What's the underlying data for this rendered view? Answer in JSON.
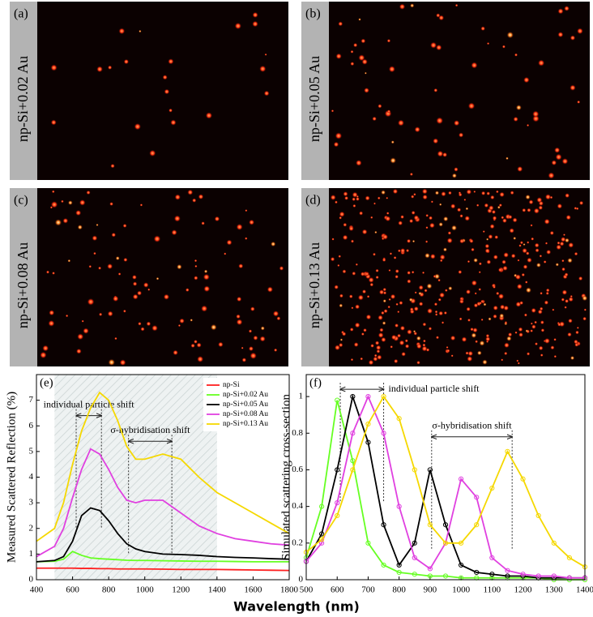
{
  "panels": [
    {
      "label": "(a)",
      "text": "np-Si+0.02 Au"
    },
    {
      "label": "(b)",
      "text": "np-Si+0.05 Au"
    },
    {
      "label": "(c)",
      "text": "np-Si+0.08 Au"
    },
    {
      "label": "(d)",
      "text": "np-Si+0.13 Au"
    }
  ],
  "chart_data": [
    {
      "type": "line",
      "label": "(e)",
      "ylabel": "Measured Scattered Reflection (%)",
      "xlabel": "Wavelength (nm)",
      "x": [
        400,
        500,
        550,
        600,
        650,
        700,
        750,
        800,
        850,
        900,
        950,
        1000,
        1100,
        1200,
        1300,
        1400,
        1500,
        1600,
        1700,
        1800
      ],
      "xlim": [
        400,
        1800
      ],
      "xticks": [
        400,
        600,
        800,
        1000,
        1200,
        1400,
        1600,
        1800
      ],
      "ylim": [
        0,
        8
      ],
      "yticks": [
        0,
        1,
        2,
        3,
        4,
        5,
        6,
        7
      ],
      "shaded_region": [
        500,
        1400
      ],
      "legend": "upper right",
      "series": [
        {
          "name": "np-Si",
          "color": "#ff2020",
          "values": [
            0.45,
            0.45,
            0.45,
            0.45,
            0.44,
            0.44,
            0.43,
            0.43,
            0.42,
            0.42,
            0.42,
            0.42,
            0.41,
            0.4,
            0.4,
            0.4,
            0.39,
            0.38,
            0.37,
            0.36
          ]
        },
        {
          "name": "np-Si+0.02 Au",
          "color": "#66ff22",
          "values": [
            0.7,
            0.72,
            0.8,
            1.1,
            0.95,
            0.85,
            0.82,
            0.8,
            0.78,
            0.76,
            0.75,
            0.75,
            0.74,
            0.73,
            0.72,
            0.72,
            0.71,
            0.7,
            0.7,
            0.7
          ]
        },
        {
          "name": "np-Si+0.05 Au",
          "color": "#000000",
          "values": [
            0.7,
            0.75,
            0.9,
            1.5,
            2.5,
            2.8,
            2.7,
            2.3,
            1.8,
            1.4,
            1.2,
            1.1,
            1.0,
            0.98,
            0.95,
            0.9,
            0.87,
            0.85,
            0.82,
            0.8
          ]
        },
        {
          "name": "np-Si+0.08 Au",
          "color": "#e040e0",
          "values": [
            0.9,
            1.3,
            2.0,
            3.2,
            4.3,
            5.1,
            4.9,
            4.3,
            3.6,
            3.1,
            3.0,
            3.1,
            3.1,
            2.6,
            2.1,
            1.8,
            1.6,
            1.5,
            1.4,
            1.35
          ]
        },
        {
          "name": "np-Si+0.13 Au",
          "color": "#f5d800",
          "values": [
            1.5,
            2.0,
            3.0,
            4.5,
            5.8,
            6.7,
            7.3,
            7.0,
            6.2,
            5.2,
            4.7,
            4.7,
            4.9,
            4.7,
            4.0,
            3.4,
            3.0,
            2.6,
            2.2,
            1.8
          ]
        }
      ],
      "annotations": [
        {
          "text": "individual particle shift",
          "x": [
            620,
            760
          ],
          "y": 6.4
        },
        {
          "text": "σ-hybridisation shift",
          "x": [
            910,
            1150
          ],
          "y": 5.4
        }
      ]
    },
    {
      "type": "line",
      "label": "(f)",
      "ylabel": "Simulated scattering cross-section",
      "markers": true,
      "x": [
        500,
        550,
        600,
        650,
        700,
        750,
        800,
        850,
        900,
        950,
        1000,
        1050,
        1100,
        1150,
        1200,
        1250,
        1300,
        1350,
        1400
      ],
      "xlim": [
        500,
        1400
      ],
      "xticks": [
        500,
        600,
        700,
        800,
        900,
        1000,
        1100,
        1200,
        1300,
        1400
      ],
      "ylim": [
        0,
        1.12
      ],
      "yticks": [
        0,
        0.2,
        0.4,
        0.6,
        0.8,
        1
      ],
      "series": [
        {
          "color": "#66ff22",
          "values": [
            0.12,
            0.4,
            0.98,
            0.65,
            0.2,
            0.08,
            0.04,
            0.03,
            0.02,
            0.02,
            0.01,
            0.01,
            0.01,
            0.01,
            0.01,
            0.01,
            0,
            0,
            0
          ]
        },
        {
          "color": "#000000",
          "values": [
            0.1,
            0.25,
            0.6,
            1.0,
            0.75,
            0.3,
            0.08,
            0.2,
            0.6,
            0.3,
            0.08,
            0.04,
            0.03,
            0.02,
            0.02,
            0.01,
            0.01,
            0.01,
            0.01
          ]
        },
        {
          "color": "#e040e0",
          "values": [
            0.1,
            0.2,
            0.42,
            0.8,
            1.0,
            0.8,
            0.4,
            0.12,
            0.06,
            0.2,
            0.55,
            0.45,
            0.12,
            0.05,
            0.03,
            0.02,
            0.02,
            0.01,
            0.01
          ]
        },
        {
          "color": "#f5d800",
          "values": [
            0.15,
            0.22,
            0.35,
            0.6,
            0.85,
            1.0,
            0.88,
            0.6,
            0.3,
            0.2,
            0.2,
            0.3,
            0.5,
            0.7,
            0.55,
            0.35,
            0.2,
            0.12,
            0.07
          ]
        }
      ],
      "annotations": [
        {
          "text": "individual particle shift",
          "x": [
            610,
            750
          ],
          "y": 1.04
        },
        {
          "text": "σ-hybridisation shift",
          "x": [
            905,
            1165
          ],
          "y": 0.78
        }
      ]
    }
  ]
}
